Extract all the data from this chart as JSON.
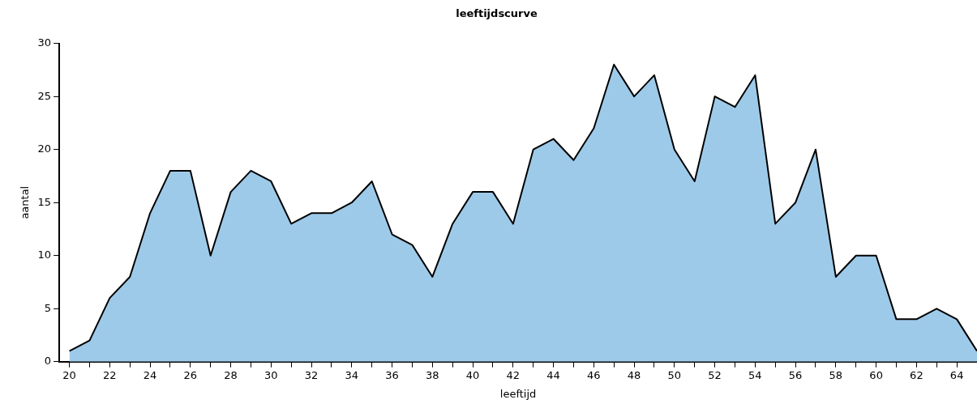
{
  "chart_data": {
    "type": "area",
    "title": "leeftijdscurve",
    "xlabel": "leeftijd",
    "ylabel": "aantal",
    "x": [
      20,
      21,
      22,
      23,
      24,
      25,
      26,
      27,
      28,
      29,
      30,
      31,
      32,
      33,
      34,
      35,
      36,
      37,
      38,
      39,
      40,
      41,
      42,
      43,
      44,
      45,
      46,
      47,
      48,
      49,
      50,
      51,
      52,
      53,
      54,
      55,
      56,
      57,
      58,
      59,
      60,
      61,
      62,
      63,
      64,
      65
    ],
    "series": [
      {
        "color": "#9ecae9",
        "values": [
          1,
          2,
          6,
          8,
          14,
          18,
          18,
          10,
          16,
          18,
          17,
          13,
          14,
          14,
          15,
          17,
          12,
          11,
          8,
          13,
          16,
          16,
          13,
          20,
          21,
          19,
          22,
          28,
          25,
          27,
          20,
          17,
          25,
          24,
          27,
          13,
          15,
          20,
          8,
          10,
          10,
          4,
          4,
          5,
          4,
          1
        ]
      }
    ],
    "xlim": [
      19.5,
      65
    ],
    "xticks": [
      20,
      {
        "value": 21,
        "label": null
      },
      22,
      {
        "value": 23,
        "label": null
      },
      24,
      {
        "value": 25,
        "label": null
      },
      26,
      {
        "value": 27,
        "label": null
      },
      28,
      {
        "value": 29,
        "label": null
      },
      30,
      {
        "value": 31,
        "label": null
      },
      32,
      {
        "value": 33,
        "label": null
      },
      34,
      {
        "value": 35,
        "label": null
      },
      36,
      {
        "value": 37,
        "label": null
      },
      38,
      {
        "value": 39,
        "label": null
      },
      40,
      {
        "value": 41,
        "label": null
      },
      42,
      {
        "value": 43,
        "label": null
      },
      44,
      {
        "value": 45,
        "label": null
      },
      46,
      {
        "value": 47,
        "label": null
      },
      48,
      {
        "value": 49,
        "label": null
      },
      50,
      {
        "value": 51,
        "label": null
      },
      52,
      {
        "value": 53,
        "label": null
      },
      54,
      {
        "value": 55,
        "label": null
      },
      56,
      {
        "value": 57,
        "label": null
      },
      58,
      {
        "value": 59,
        "label": null
      },
      60,
      {
        "value": 61,
        "label": null
      },
      62,
      {
        "value": 63,
        "label": null
      },
      64
    ],
    "ylim": [
      0,
      30
    ],
    "yticks": [
      0,
      5,
      10,
      15,
      20,
      25,
      30
    ],
    "grid": false,
    "legend": false,
    "marker": "none"
  }
}
